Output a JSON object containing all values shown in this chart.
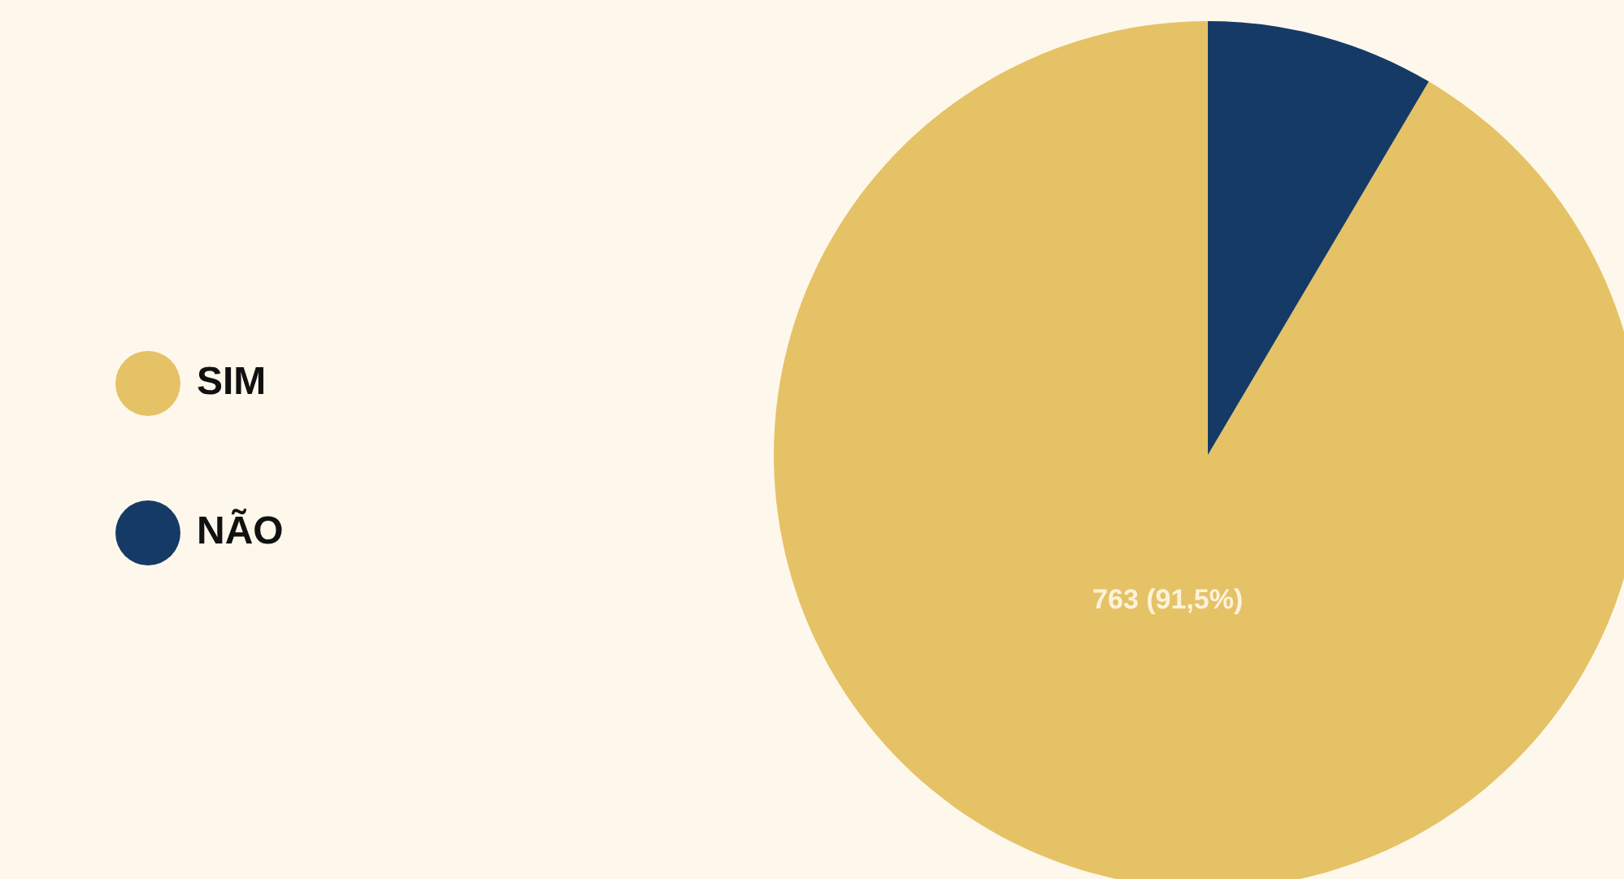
{
  "chart_data": {
    "type": "pie",
    "categories": [
      "SIM",
      "NÃO"
    ],
    "values": [
      91.5,
      8.5
    ],
    "colors": [
      "#e6c266",
      "#163a66"
    ],
    "value_labels": [
      "763 (91,5%)",
      null
    ],
    "legend": "left"
  }
}
